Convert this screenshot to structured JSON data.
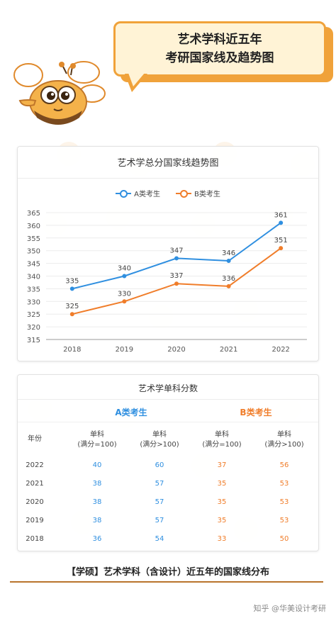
{
  "banner": {
    "line1": "艺术学科近五年",
    "line2": "考研国家线及趋势图"
  },
  "colors": {
    "a": "#2f8fe0",
    "b": "#f07d2a",
    "accent": "#f0a23a"
  },
  "chart_data": {
    "type": "line",
    "title": "艺术学总分国家线趋势图",
    "categories": [
      "2018",
      "2019",
      "2020",
      "2021",
      "2022"
    ],
    "series": [
      {
        "name": "A类考生",
        "values": [
          335,
          340,
          347,
          346,
          361
        ]
      },
      {
        "name": "B类考生",
        "values": [
          325,
          330,
          337,
          336,
          351
        ]
      }
    ],
    "ylim": [
      315,
      365
    ],
    "yticks": [
      315,
      320,
      325,
      330,
      335,
      340,
      345,
      350,
      355,
      360,
      365
    ],
    "grid": true,
    "legend_position": "top-center"
  },
  "table": {
    "title": "艺术学单科分数",
    "group_a": "A类考生",
    "group_b": "B类考生",
    "headers": [
      "年份",
      "单科\n(满分=100)",
      "单科\n(满分>100)",
      "单科\n(满分=100)",
      "单科\n(满分>100)"
    ],
    "rows": [
      [
        "2022",
        "40",
        "60",
        "37",
        "56"
      ],
      [
        "2021",
        "38",
        "57",
        "35",
        "53"
      ],
      [
        "2020",
        "38",
        "57",
        "35",
        "53"
      ],
      [
        "2019",
        "38",
        "57",
        "35",
        "53"
      ],
      [
        "2018",
        "36",
        "54",
        "33",
        "50"
      ]
    ]
  },
  "footer": {
    "title": "【学硕】艺术学科（含设计）近五年的国家线分布",
    "watermark": "知乎 @华美设计考研"
  }
}
